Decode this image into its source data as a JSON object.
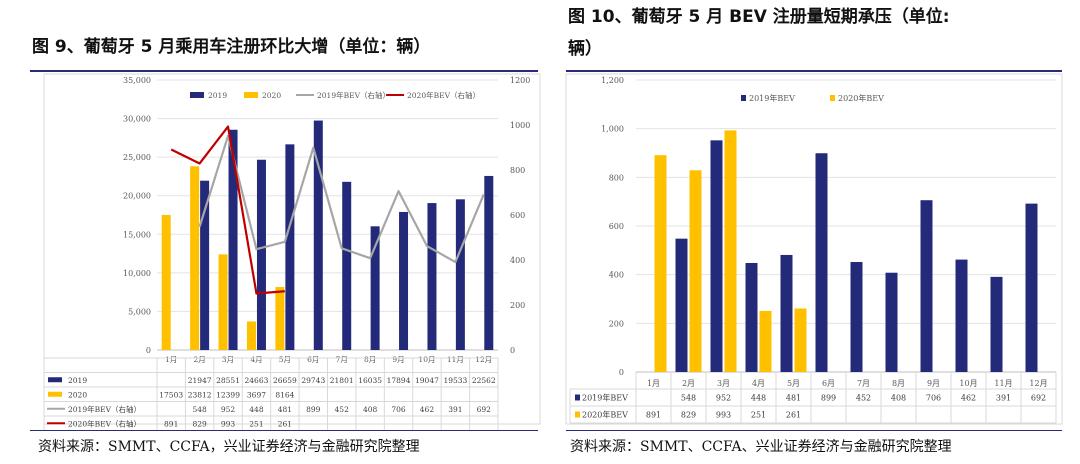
{
  "figures": [
    {
      "id": "fig9",
      "title": "图 9、葡萄牙 5 月乘用车注册环比大增（单位：辆）",
      "source": "资料来源：SMMT、CCFA，兴业证券经济与金融研究院整理"
    },
    {
      "id": "fig10",
      "title_line1": "图 10、葡萄牙 5 月 BEV 注册量短期承压（单位:",
      "title_line2": "辆）",
      "source": "资料来源：SMMT、CCFA、兴业证券经济与金融研究院整理"
    }
  ],
  "colors": {
    "navy": "#242A7A",
    "gold": "#FFC000",
    "gray": "#A6A6A6",
    "red": "#C00000",
    "rule": "#2C2A7A"
  },
  "chart_data": [
    {
      "type": "bar",
      "categories": [
        "1月",
        "2月",
        "3月",
        "4月",
        "5月",
        "6月",
        "7月",
        "8月",
        "9月",
        "10月",
        "11月",
        "12月"
      ],
      "ylim": [
        0,
        35000
      ],
      "yticks": [
        "0",
        "5,000",
        "10,000",
        "15,000",
        "20,000",
        "25,000",
        "30,000",
        "35,000"
      ],
      "y2lim": [
        0,
        1200
      ],
      "y2ticks": [
        "0",
        "200",
        "400",
        "600",
        "800",
        "1000",
        "1200"
      ],
      "legend_position": "top",
      "series": [
        {
          "name": "2019",
          "type": "bar",
          "axis": "left",
          "values": [
            null,
            21947,
            28551,
            24663,
            26659,
            29743,
            21801,
            16035,
            17894,
            19047,
            19533,
            22562
          ]
        },
        {
          "name": "2020",
          "type": "bar",
          "axis": "left",
          "values": [
            17503,
            23812,
            12399,
            3697,
            8164,
            null,
            null,
            null,
            null,
            null,
            null,
            null
          ]
        },
        {
          "name": "2019年BEV（右轴）",
          "type": "line",
          "axis": "right",
          "values": [
            null,
            548,
            952,
            448,
            481,
            899,
            452,
            408,
            706,
            462,
            391,
            692
          ]
        },
        {
          "name": "2020年BEV（右轴）",
          "type": "line",
          "axis": "right",
          "values": [
            891,
            829,
            993,
            251,
            261,
            null,
            null,
            null,
            null,
            null,
            null,
            null
          ]
        }
      ],
      "table": {
        "rows": [
          {
            "label": "2019",
            "cells": [
              "",
              "21947",
              "28551",
              "24663",
              "26659",
              "29743",
              "21801",
              "16035",
              "17894",
              "19047",
              "19533",
              "22562"
            ]
          },
          {
            "label": "2020",
            "cells": [
              "17503",
              "23812",
              "12399",
              "3697",
              "8164",
              "",
              "",
              "",
              "",
              "",
              "",
              ""
            ]
          },
          {
            "label": "2019年BEV（右轴）",
            "cells": [
              "",
              "548",
              "952",
              "448",
              "481",
              "899",
              "452",
              "408",
              "706",
              "462",
              "391",
              "692"
            ]
          },
          {
            "label": "2020年BEV（右轴）",
            "cells": [
              "891",
              "829",
              "993",
              "251",
              "261",
              "",
              "",
              "",
              "",
              "",
              "",
              ""
            ]
          }
        ]
      }
    },
    {
      "type": "bar",
      "categories": [
        "1月",
        "2月",
        "3月",
        "4月",
        "5月",
        "6月",
        "7月",
        "8月",
        "9月",
        "10月",
        "11月",
        "12月"
      ],
      "ylim": [
        0,
        1200
      ],
      "yticks": [
        "0",
        "200",
        "400",
        "600",
        "800",
        "1,000",
        "1,200"
      ],
      "legend_position": "top",
      "series": [
        {
          "name": "2019年BEV",
          "type": "bar",
          "values": [
            null,
            548,
            952,
            448,
            481,
            899,
            452,
            408,
            706,
            462,
            391,
            692
          ]
        },
        {
          "name": "2020年BEV",
          "type": "bar",
          "values": [
            891,
            829,
            993,
            251,
            261,
            null,
            null,
            null,
            null,
            null,
            null,
            null
          ]
        }
      ],
      "table": {
        "rows": [
          {
            "label": "2019年BEV",
            "cells": [
              "",
              "548",
              "952",
              "448",
              "481",
              "899",
              "452",
              "408",
              "706",
              "462",
              "391",
              "692"
            ]
          },
          {
            "label": "2020年BEV",
            "cells": [
              "891",
              "829",
              "993",
              "251",
              "261",
              "",
              "",
              "",
              "",
              "",
              "",
              ""
            ]
          }
        ]
      }
    }
  ]
}
